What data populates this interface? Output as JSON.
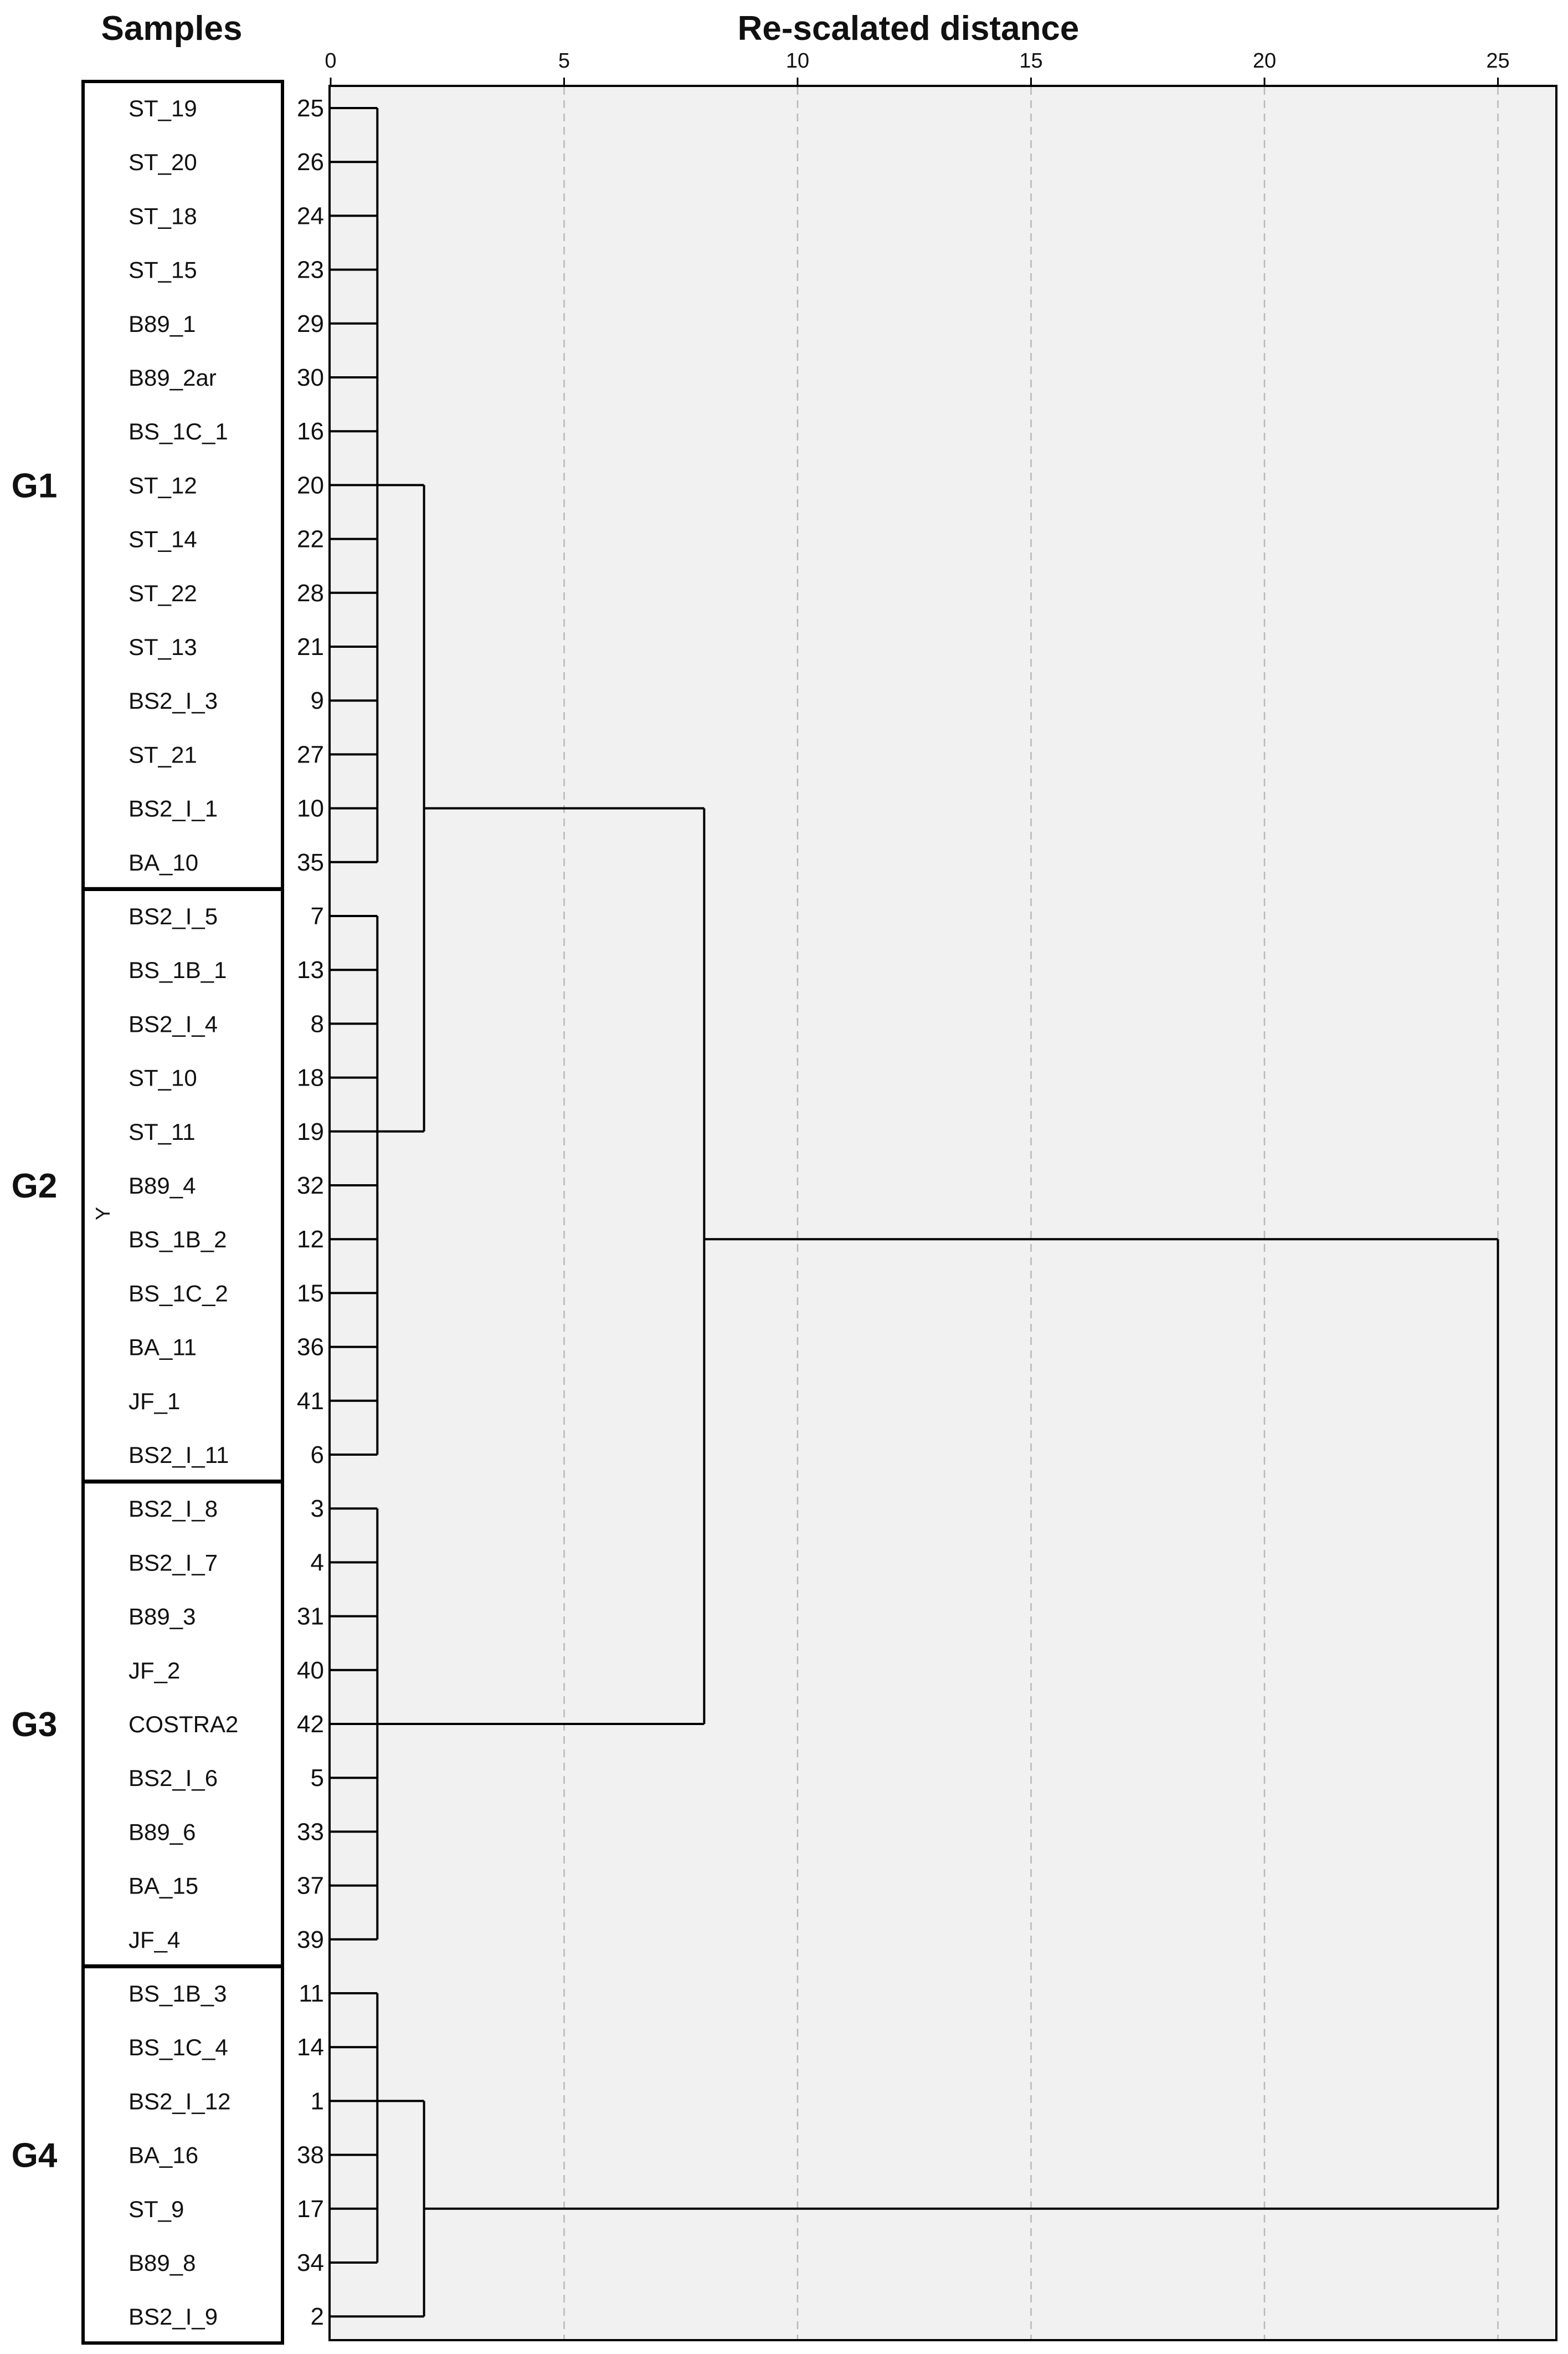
{
  "chart_data": {
    "type": "dendrogram",
    "title": "Re-scalated distance",
    "samples_header": "Samples",
    "axis_label_y": "Y",
    "xlim": [
      0,
      26
    ],
    "x_ticks": [
      0,
      5,
      10,
      15,
      20,
      25
    ],
    "grid": true,
    "groups": [
      {
        "name": "G1",
        "first_leaf": 0,
        "last_leaf": 14
      },
      {
        "name": "G2",
        "first_leaf": 15,
        "last_leaf": 25
      },
      {
        "name": "G3",
        "first_leaf": 26,
        "last_leaf": 34
      },
      {
        "name": "G4",
        "first_leaf": 35,
        "last_leaf": 41
      }
    ],
    "leaves": [
      {
        "sample": "ST_19",
        "case": "25"
      },
      {
        "sample": "ST_20",
        "case": "26"
      },
      {
        "sample": "ST_18",
        "case": "24"
      },
      {
        "sample": "ST_15",
        "case": "23"
      },
      {
        "sample": "B89_1",
        "case": "29"
      },
      {
        "sample": "B89_2ar",
        "case": "30"
      },
      {
        "sample": "BS_1C_1",
        "case": "16"
      },
      {
        "sample": "ST_12",
        "case": "20"
      },
      {
        "sample": "ST_14",
        "case": "22"
      },
      {
        "sample": "ST_22",
        "case": "28"
      },
      {
        "sample": "ST_13",
        "case": "21"
      },
      {
        "sample": "BS2_I_3",
        "case": "9"
      },
      {
        "sample": "ST_21",
        "case": "27"
      },
      {
        "sample": "BS2_I_1",
        "case": "10"
      },
      {
        "sample": "BA_10",
        "case": "35"
      },
      {
        "sample": "BS2_I_5",
        "case": "7"
      },
      {
        "sample": "BS_1B_1",
        "case": "13"
      },
      {
        "sample": "BS2_I_4",
        "case": "8"
      },
      {
        "sample": "ST_10",
        "case": "18"
      },
      {
        "sample": "ST_11",
        "case": "19"
      },
      {
        "sample": "B89_4",
        "case": "32"
      },
      {
        "sample": "BS_1B_2",
        "case": "12"
      },
      {
        "sample": "BS_1C_2",
        "case": "15"
      },
      {
        "sample": "BA_11",
        "case": "36"
      },
      {
        "sample": "JF_1",
        "case": "41"
      },
      {
        "sample": "BS2_I_11",
        "case": "6"
      },
      {
        "sample": "BS2_I_8",
        "case": "3"
      },
      {
        "sample": "BS2_I_7",
        "case": "4"
      },
      {
        "sample": "B89_3",
        "case": "31"
      },
      {
        "sample": "JF_2",
        "case": "40"
      },
      {
        "sample": "COSTRA2",
        "case": "42"
      },
      {
        "sample": "BS2_I_6",
        "case": "5"
      },
      {
        "sample": "B89_6",
        "case": "33"
      },
      {
        "sample": "BA_15",
        "case": "37"
      },
      {
        "sample": "JF_4",
        "case": "39"
      },
      {
        "sample": "BS_1B_3",
        "case": "11"
      },
      {
        "sample": "BS_1C_4",
        "case": "14"
      },
      {
        "sample": "BS2_I_12",
        "case": "1"
      },
      {
        "sample": "BA_16",
        "case": "38"
      },
      {
        "sample": "ST_9",
        "case": "17"
      },
      {
        "sample": "B89_8",
        "case": "34"
      },
      {
        "sample": "BS2_I_9",
        "case": "2"
      }
    ],
    "merges": [
      {
        "name": "G1 cluster",
        "height": 1,
        "span": [
          0,
          14
        ],
        "attach": 7
      },
      {
        "name": "G2 cluster",
        "height": 1,
        "span": [
          15,
          25
        ],
        "attach": 19
      },
      {
        "name": "G3 cluster",
        "height": 1,
        "span": [
          26,
          34
        ],
        "attach": 30
      },
      {
        "name": "G4 core cluster",
        "height": 1,
        "span": [
          35,
          40
        ],
        "attach": 37
      },
      {
        "name": "G1+G2",
        "height": 2,
        "children": [
          "G1 cluster",
          "G2 cluster"
        ],
        "attach_y": "mid"
      },
      {
        "name": "G4 core+BS2_I_9",
        "height": 2,
        "children": [
          "G4 core cluster",
          "leaf:41"
        ],
        "attach_leaf": 39
      },
      {
        "name": "G1+G2+G3",
        "height": 8,
        "children": [
          "G1+G2",
          "G3 cluster"
        ],
        "attach_leaf": 21
      },
      {
        "name": "root",
        "height": 25,
        "children": [
          "G1+G2+G3",
          "G4 core+BS2_I_9"
        ]
      }
    ]
  }
}
